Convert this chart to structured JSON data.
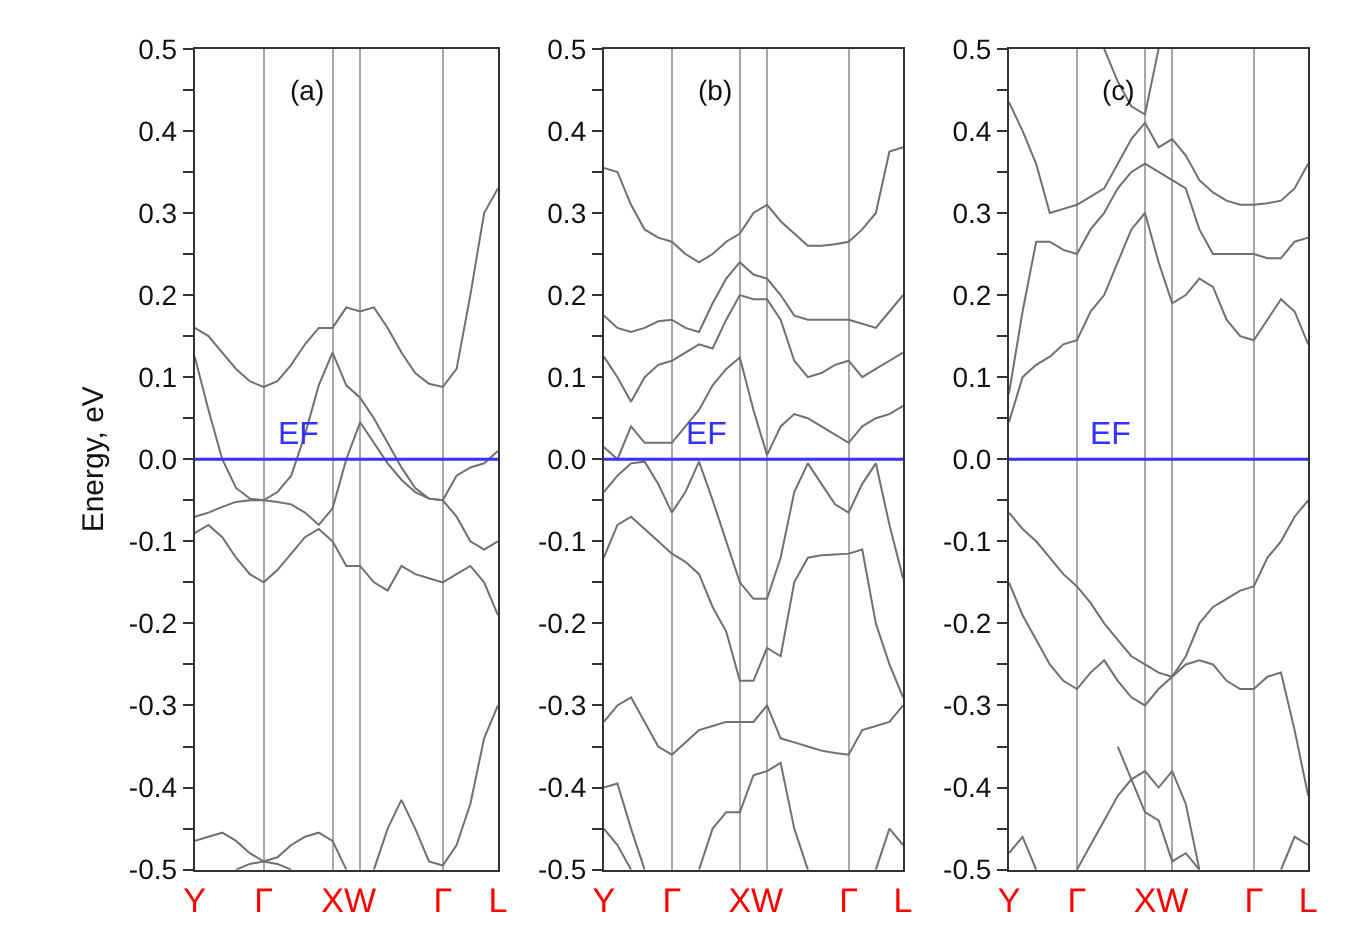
{
  "chart_data": [
    {
      "type": "line",
      "title": "(a)",
      "ylabel": "Energy, eV",
      "ylim": [
        -0.5,
        0.5
      ],
      "categories": [
        "Y",
        null,
        null,
        null,
        null,
        "Γ",
        null,
        null,
        null,
        null,
        "X",
        null,
        "W",
        null,
        null,
        null,
        null,
        null,
        "Γ",
        null,
        null,
        null,
        "L"
      ],
      "yticks": [
        0.5,
        {
          "value": 0.45,
          "label": null
        },
        0.4,
        {
          "value": 0.35,
          "label": null
        },
        0.3,
        {
          "value": 0.25,
          "label": null
        },
        0.2,
        {
          "value": 0.15,
          "label": null
        },
        0.1,
        {
          "value": 0.05,
          "label": null
        },
        {
          "value": 0,
          "label": "0.0"
        },
        {
          "value": -0.05,
          "label": null
        },
        -0.1,
        {
          "value": -0.15,
          "label": null
        },
        -0.2,
        {
          "value": -0.25,
          "label": null
        },
        -0.3,
        {
          "value": -0.35,
          "label": null
        },
        -0.4,
        {
          "value": -0.45,
          "label": null
        },
        -0.5
      ],
      "grid": "x",
      "ref_lines": [
        {
          "axis": "y",
          "value": 0,
          "label": "EF",
          "color": "#3333ff"
        }
      ],
      "series": [
        {
          "color": "#707070",
          "values": [
            0.16,
            0.15,
            0.13,
            0.11,
            0.095,
            0.088,
            0.095,
            0.115,
            0.14,
            0.16,
            0.16,
            0.185,
            0.18,
            0.185,
            0.16,
            0.13,
            0.105,
            0.092,
            0.088,
            0.11,
            0.2,
            0.3,
            0.33
          ]
        },
        {
          "color": "#707070",
          "values": [
            0.125,
            0.06,
            0,
            -0.035,
            -0.048,
            -0.05,
            -0.04,
            -0.02,
            0.03,
            0.09,
            0.13,
            0.09,
            0.075,
            0.05,
            0.02,
            -0.01,
            -0.035,
            -0.048,
            -0.05,
            -0.07,
            -0.1,
            -0.11,
            -0.1
          ]
        },
        {
          "color": "#707070",
          "values": [
            -0.07,
            -0.065,
            -0.058,
            -0.052,
            -0.05,
            -0.05,
            -0.052,
            -0.055,
            -0.065,
            -0.08,
            -0.06,
            0.0,
            0.045,
            0.02,
            -0.005,
            -0.025,
            -0.04,
            -0.048,
            -0.05,
            -0.02,
            -0.01,
            -0.005,
            0.01
          ]
        },
        {
          "color": "#707070",
          "values": [
            -0.09,
            -0.08,
            -0.095,
            -0.12,
            -0.14,
            -0.15,
            -0.135,
            -0.115,
            -0.095,
            -0.085,
            -0.1,
            -0.13,
            -0.13,
            -0.15,
            -0.16,
            -0.13,
            -0.14,
            -0.145,
            -0.15,
            -0.14,
            -0.13,
            -0.15,
            -0.19
          ]
        },
        {
          "color": "#707070",
          "values": [
            -0.465,
            -0.46,
            -0.455,
            -0.465,
            -0.48,
            -0.49,
            -0.485,
            -0.47,
            -0.46,
            -0.455,
            -0.465,
            -0.5,
            null,
            null,
            null,
            null,
            null,
            null,
            null,
            null,
            null,
            null,
            null
          ]
        },
        {
          "color": "#707070",
          "values": [
            null,
            null,
            null,
            -0.5,
            -0.493,
            -0.49,
            -0.493,
            -0.5,
            null,
            null,
            null,
            null,
            null,
            null,
            null,
            null,
            null,
            null,
            null,
            null,
            null,
            null,
            null
          ]
        },
        {
          "color": "#707070",
          "values": [
            null,
            null,
            null,
            null,
            null,
            null,
            null,
            null,
            null,
            null,
            null,
            null,
            null,
            -0.5,
            -0.45,
            -0.415,
            -0.45,
            -0.49,
            -0.495,
            -0.47,
            -0.42,
            -0.34,
            -0.3
          ]
        }
      ]
    },
    {
      "type": "line",
      "title": "(b)",
      "ylim": [
        -0.5,
        0.5
      ],
      "categories": [
        "Y",
        null,
        null,
        null,
        null,
        "Γ",
        null,
        null,
        null,
        null,
        "X",
        null,
        "W",
        null,
        null,
        null,
        null,
        null,
        "Γ",
        null,
        null,
        null,
        "L"
      ],
      "yticks": [
        0.5,
        {
          "value": 0.45,
          "label": null
        },
        0.4,
        {
          "value": 0.35,
          "label": null
        },
        0.3,
        {
          "value": 0.25,
          "label": null
        },
        0.2,
        {
          "value": 0.15,
          "label": null
        },
        0.1,
        {
          "value": 0.05,
          "label": null
        },
        {
          "value": 0,
          "label": "0.0"
        },
        {
          "value": -0.05,
          "label": null
        },
        -0.1,
        {
          "value": -0.15,
          "label": null
        },
        -0.2,
        {
          "value": -0.25,
          "label": null
        },
        -0.3,
        {
          "value": -0.35,
          "label": null
        },
        -0.4,
        {
          "value": -0.45,
          "label": null
        },
        -0.5
      ],
      "grid": "x",
      "ref_lines": [
        {
          "axis": "y",
          "value": 0,
          "label": "EF",
          "color": "#3333ff"
        }
      ],
      "series": [
        {
          "color": "#707070",
          "values": [
            0.355,
            0.35,
            0.31,
            0.28,
            0.27,
            0.265,
            0.25,
            0.24,
            0.25,
            0.265,
            0.275,
            0.3,
            0.31,
            0.29,
            0.275,
            0.26,
            0.26,
            0.262,
            0.265,
            0.28,
            0.3,
            0.375,
            0.38
          ]
        },
        {
          "color": "#707070",
          "values": [
            0.175,
            0.16,
            0.155,
            0.16,
            0.168,
            0.17,
            0.16,
            0.155,
            0.19,
            0.22,
            0.24,
            0.225,
            0.22,
            0.2,
            0.175,
            0.17,
            0.17,
            0.17,
            0.17,
            0.165,
            0.16,
            0.18,
            0.2
          ]
        },
        {
          "color": "#707070",
          "values": [
            0.125,
            0.1,
            0.07,
            0.1,
            0.115,
            0.12,
            0.13,
            0.14,
            0.135,
            0.17,
            0.2,
            0.195,
            0.195,
            0.17,
            0.12,
            0.1,
            0.105,
            0.115,
            0.12,
            0.1,
            0.11,
            0.12,
            0.13
          ]
        },
        {
          "color": "#707070",
          "values": [
            0.015,
            0.0,
            0.04,
            0.02,
            0.02,
            0.02,
            0.04,
            0.06,
            0.09,
            0.11,
            0.124,
            0.06,
            0.005,
            0.04,
            0.055,
            0.05,
            0.04,
            0.03,
            0.02,
            0.04,
            0.05,
            0.055,
            0.065
          ]
        },
        {
          "color": "#707070",
          "values": [
            -0.04,
            -0.02,
            -0.005,
            -0.003,
            -0.03,
            -0.065,
            -0.04,
            -0.003,
            -0.05,
            -0.1,
            -0.15,
            -0.17,
            -0.17,
            -0.12,
            -0.04,
            -0.005,
            -0.03,
            -0.055,
            -0.065,
            -0.03,
            -0.005,
            -0.08,
            -0.145
          ]
        },
        {
          "color": "#707070",
          "values": [
            -0.12,
            -0.08,
            -0.07,
            -0.085,
            -0.1,
            -0.115,
            -0.125,
            -0.14,
            -0.18,
            -0.21,
            -0.27,
            -0.27,
            -0.23,
            -0.24,
            -0.15,
            -0.12,
            -0.117,
            -0.116,
            -0.115,
            -0.11,
            -0.2,
            -0.25,
            -0.29
          ]
        },
        {
          "color": "#707070",
          "values": [
            -0.32,
            -0.3,
            -0.29,
            -0.32,
            -0.35,
            -0.36,
            -0.345,
            -0.33,
            -0.325,
            -0.32,
            -0.32,
            -0.32,
            -0.3,
            -0.34,
            -0.345,
            -0.35,
            -0.355,
            -0.358,
            -0.36,
            -0.33,
            -0.325,
            -0.32,
            -0.3
          ]
        },
        {
          "color": "#707070",
          "values": [
            -0.4,
            -0.395,
            -0.45,
            -0.5,
            null,
            null,
            null,
            null,
            null,
            null,
            null,
            null,
            null,
            null,
            null,
            null,
            null,
            null,
            null,
            null,
            null,
            null,
            null
          ]
        },
        {
          "color": "#707070",
          "values": [
            -0.45,
            -0.47,
            -0.5,
            null,
            null,
            null,
            null,
            null,
            null,
            null,
            null,
            null,
            null,
            null,
            null,
            null,
            null,
            null,
            null,
            null,
            null,
            null,
            null
          ]
        },
        {
          "color": "#707070",
          "values": [
            null,
            null,
            null,
            null,
            null,
            null,
            null,
            -0.5,
            -0.45,
            -0.43,
            -0.43,
            -0.385,
            -0.38,
            -0.37,
            -0.45,
            -0.5,
            null,
            null,
            null,
            null,
            null,
            null,
            null
          ]
        },
        {
          "color": "#707070",
          "values": [
            null,
            null,
            null,
            null,
            null,
            null,
            null,
            null,
            null,
            null,
            null,
            null,
            null,
            null,
            null,
            null,
            null,
            null,
            null,
            null,
            -0.5,
            -0.45,
            -0.47
          ]
        }
      ]
    },
    {
      "type": "line",
      "title": "(c)",
      "ylim": [
        -0.5,
        0.5
      ],
      "categories": [
        "Y",
        null,
        null,
        null,
        null,
        "Γ",
        null,
        null,
        null,
        null,
        "X",
        null,
        "W",
        null,
        null,
        null,
        null,
        null,
        "Γ",
        null,
        null,
        null,
        "L"
      ],
      "yticks": [
        0.5,
        {
          "value": 0.45,
          "label": null
        },
        0.4,
        {
          "value": 0.35,
          "label": null
        },
        0.3,
        {
          "value": 0.25,
          "label": null
        },
        0.2,
        {
          "value": 0.15,
          "label": null
        },
        0.1,
        {
          "value": 0.05,
          "label": null
        },
        {
          "value": 0,
          "label": "0.0"
        },
        {
          "value": -0.05,
          "label": null
        },
        -0.1,
        {
          "value": -0.15,
          "label": null
        },
        -0.2,
        {
          "value": -0.25,
          "label": null
        },
        -0.3,
        {
          "value": -0.35,
          "label": null
        },
        -0.4,
        {
          "value": -0.45,
          "label": null
        },
        -0.5
      ],
      "grid": "x",
      "ref_lines": [
        {
          "axis": "y",
          "value": 0,
          "label": "EF",
          "color": "#3333ff"
        }
      ],
      "series": [
        {
          "color": "#707070",
          "values": [
            null,
            null,
            null,
            null,
            null,
            null,
            null,
            0.5,
            0.46,
            0.43,
            0.42,
            0.5,
            null,
            null,
            null,
            null,
            null,
            null,
            null,
            null,
            null,
            null,
            null
          ]
        },
        {
          "color": "#707070",
          "values": [
            0.435,
            0.4,
            0.36,
            0.3,
            0.305,
            0.31,
            0.32,
            0.33,
            0.36,
            0.39,
            0.41,
            0.38,
            0.39,
            0.37,
            0.34,
            0.325,
            0.315,
            0.31,
            0.31,
            0.312,
            0.315,
            0.33,
            0.36
          ]
        },
        {
          "color": "#707070",
          "values": [
            0.08,
            0.18,
            0.265,
            0.265,
            0.255,
            0.25,
            0.28,
            0.3,
            0.33,
            0.35,
            0.36,
            0.35,
            0.34,
            0.33,
            0.28,
            0.25,
            0.25,
            0.25,
            0.25,
            0.245,
            0.245,
            0.265,
            0.27
          ]
        },
        {
          "color": "#707070",
          "values": [
            0.045,
            0.1,
            0.115,
            0.125,
            0.14,
            0.145,
            0.18,
            0.2,
            0.24,
            0.28,
            0.3,
            0.24,
            0.19,
            0.2,
            0.22,
            0.21,
            0.17,
            0.15,
            0.145,
            0.17,
            0.195,
            0.18,
            0.14
          ]
        },
        {
          "color": "#707070",
          "values": [
            -0.065,
            -0.085,
            -0.1,
            -0.12,
            -0.14,
            -0.155,
            -0.175,
            -0.2,
            -0.22,
            -0.24,
            -0.25,
            -0.26,
            -0.265,
            -0.24,
            -0.2,
            -0.18,
            -0.17,
            -0.16,
            -0.155,
            -0.12,
            -0.1,
            -0.07,
            -0.05
          ]
        },
        {
          "color": "#707070",
          "values": [
            -0.15,
            -0.19,
            -0.22,
            -0.25,
            -0.27,
            -0.28,
            -0.26,
            -0.245,
            -0.27,
            -0.29,
            -0.3,
            -0.28,
            -0.265,
            -0.25,
            -0.245,
            -0.25,
            -0.27,
            -0.28,
            -0.28,
            -0.265,
            -0.26,
            -0.33,
            -0.41
          ]
        },
        {
          "color": "#707070",
          "values": [
            null,
            null,
            null,
            null,
            null,
            -0.5,
            -0.47,
            -0.44,
            -0.41,
            -0.39,
            -0.38,
            -0.4,
            -0.38,
            -0.42,
            -0.5,
            null,
            null,
            null,
            null,
            null,
            null,
            null,
            null
          ]
        },
        {
          "color": "#707070",
          "values": [
            null,
            null,
            null,
            null,
            null,
            null,
            null,
            null,
            -0.35,
            -0.39,
            -0.43,
            -0.44,
            -0.49,
            -0.48,
            -0.5,
            null,
            null,
            null,
            null,
            null,
            null,
            null,
            null
          ]
        },
        {
          "color": "#707070",
          "values": [
            -0.48,
            -0.46,
            -0.5,
            null,
            null,
            null,
            null,
            null,
            null,
            null,
            null,
            null,
            null,
            null,
            null,
            null,
            null,
            null,
            null,
            null,
            null,
            null,
            null
          ]
        },
        {
          "color": "#707070",
          "values": [
            null,
            null,
            null,
            null,
            null,
            null,
            null,
            null,
            null,
            null,
            null,
            null,
            null,
            null,
            null,
            null,
            null,
            null,
            null,
            null,
            -0.5,
            -0.46,
            -0.47
          ]
        }
      ]
    }
  ]
}
